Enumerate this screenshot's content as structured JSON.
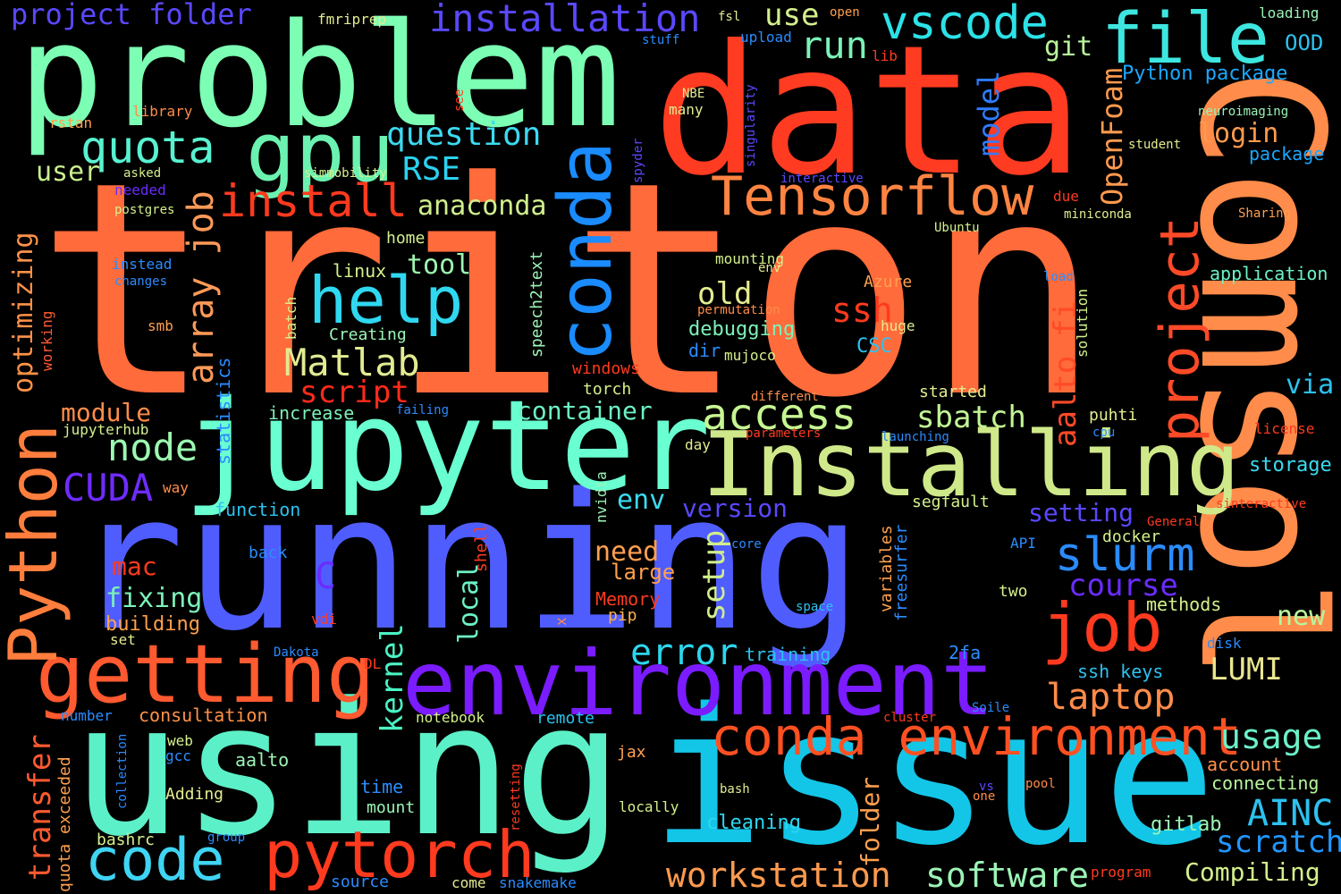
{
  "background_color": "#000000",
  "words": [
    {
      "text": "triton",
      "color": "#ff6b3a"
    },
    {
      "text": "running",
      "color": "#4f5dff"
    },
    {
      "text": "using",
      "color": "#5cf0c8"
    },
    {
      "text": "issue",
      "color": "#13c6e8"
    },
    {
      "text": "data",
      "color": "#ff3b21"
    },
    {
      "text": "problem",
      "color": "#7cffb4"
    },
    {
      "text": "Comsol",
      "color": "#ff8c4a"
    },
    {
      "text": "jupyter",
      "color": "#6affd0"
    },
    {
      "text": "Installing",
      "color": "#cfe98a"
    },
    {
      "text": "environment",
      "color": "#7a1cff"
    },
    {
      "text": "getting",
      "color": "#ff5a30"
    },
    {
      "text": "Python",
      "color": "#ff7e3d"
    },
    {
      "text": "code",
      "color": "#3fd4f4"
    },
    {
      "text": "pytorch",
      "color": "#ff3a1f"
    },
    {
      "text": "conda",
      "color": "#1a8cff"
    },
    {
      "text": "conda environment",
      "color": "#ff5022"
    },
    {
      "text": "job",
      "color": "#ff3a1f"
    },
    {
      "text": "gpu",
      "color": "#6bf2b0"
    },
    {
      "text": "file",
      "color": "#3ee6e0"
    },
    {
      "text": "help",
      "color": "#2fd8f0"
    },
    {
      "text": "quota",
      "color": "#58f2d0"
    },
    {
      "text": "install",
      "color": "#ff3a1f"
    },
    {
      "text": "Tensorflow",
      "color": "#ff8442"
    },
    {
      "text": "project",
      "color": "#ff4a28"
    },
    {
      "text": "vscode",
      "color": "#2ce2e8"
    },
    {
      "text": "installation",
      "color": "#5a48ff"
    },
    {
      "text": "project folder",
      "color": "#5a48ff"
    },
    {
      "text": "use",
      "color": "#d4f08c"
    },
    {
      "text": "run",
      "color": "#7cf2b8"
    },
    {
      "text": "access",
      "color": "#c6f592"
    },
    {
      "text": "node",
      "color": "#9cf8b0"
    },
    {
      "text": "CUDA",
      "color": "#6e2cff"
    },
    {
      "text": "array job",
      "color": "#ff9a58"
    },
    {
      "text": "Matlab",
      "color": "#e2eb92"
    },
    {
      "text": "slurm",
      "color": "#2a8cff"
    },
    {
      "text": "error",
      "color": "#2cd6ee"
    },
    {
      "text": "laptop",
      "color": "#ff8c4a"
    },
    {
      "text": "workstation",
      "color": "#ff9a4e"
    },
    {
      "text": "software",
      "color": "#9cf4b6"
    },
    {
      "text": "usage",
      "color": "#6cf0c8"
    },
    {
      "text": "scratch",
      "color": "#2296ff"
    },
    {
      "text": "AINC",
      "color": "#2cc2f0"
    },
    {
      "text": "aalto fi",
      "color": "#ff4a28"
    },
    {
      "text": "optimizing",
      "color": "#ff9248"
    },
    {
      "text": "transfer",
      "color": "#ff5a30"
    },
    {
      "text": "kernel",
      "color": "#4af2c4"
    },
    {
      "text": "setup",
      "color": "#d0ee8c"
    },
    {
      "text": "local",
      "color": "#6cf2c4"
    },
    {
      "text": "OpenFoam",
      "color": "#ff9a4e"
    },
    {
      "text": "model",
      "color": "#2e7cff"
    },
    {
      "text": "ssh",
      "color": "#ff3a1f"
    },
    {
      "text": "script",
      "color": "#ff2a1a"
    },
    {
      "text": "question",
      "color": "#3cdaf0"
    },
    {
      "text": "RSE",
      "color": "#2ad2f0"
    },
    {
      "text": "anaconda",
      "color": "#d0ee8c"
    },
    {
      "text": "tool",
      "color": "#9cf6b0"
    },
    {
      "text": "old",
      "color": "#e4ec90"
    },
    {
      "text": "container",
      "color": "#6cf2c4"
    },
    {
      "text": "sbatch",
      "color": "#c2f594"
    },
    {
      "text": "module",
      "color": "#ff8c4a"
    },
    {
      "text": "LUMI",
      "color": "#eae690"
    },
    {
      "text": "course",
      "color": "#6a2cff"
    },
    {
      "text": "setting",
      "color": "#5a48ff"
    },
    {
      "text": "new",
      "color": "#b8f69c"
    },
    {
      "text": "git",
      "color": "#b8f69c"
    },
    {
      "text": "login",
      "color": "#ff9a4e"
    },
    {
      "text": "user",
      "color": "#c8ee8e"
    },
    {
      "text": "via",
      "color": "#2cc2f0"
    },
    {
      "text": "storage",
      "color": "#3cdaf0"
    },
    {
      "text": "OOD",
      "color": "#2cc2f0"
    },
    {
      "text": "Python package",
      "color": "#1aa8ff"
    },
    {
      "text": "package",
      "color": "#1aa8ff"
    },
    {
      "text": "application",
      "color": "#6cf2c4"
    },
    {
      "text": "debugging",
      "color": "#7cf2b8"
    },
    {
      "text": "fixing",
      "color": "#7cf2b8"
    },
    {
      "text": "mac",
      "color": "#ff3a1f"
    },
    {
      "text": "building",
      "color": "#ffa04e"
    },
    {
      "text": "need",
      "color": "#ffa04e"
    },
    {
      "text": "large",
      "color": "#ffa04e"
    },
    {
      "text": "env",
      "color": "#3cdaf0"
    },
    {
      "text": "version",
      "color": "#5a48ff"
    },
    {
      "text": "Compiling",
      "color": "#d4f08c"
    },
    {
      "text": "C",
      "color": "#6a2cff"
    },
    {
      "text": "consultation",
      "color": "#ff9248"
    },
    {
      "text": "training",
      "color": "#2cc2f0"
    },
    {
      "text": "ssh keys",
      "color": "#2cc2f0"
    },
    {
      "text": "2fa",
      "color": "#2a8cff"
    },
    {
      "text": "account",
      "color": "#ff9248"
    },
    {
      "text": "connecting",
      "color": "#b8f69c"
    },
    {
      "text": "cleaning",
      "color": "#2cd6ee"
    },
    {
      "text": "gitlab",
      "color": "#9cf4b6"
    },
    {
      "text": "folder",
      "color": "#ffa04e"
    },
    {
      "text": "dir",
      "color": "#2a8cff"
    },
    {
      "text": "CSC",
      "color": "#2cc2f0"
    },
    {
      "text": "increase",
      "color": "#7cf2b8"
    },
    {
      "text": "function",
      "color": "#2cc2f0"
    },
    {
      "text": "statistics",
      "color": "#2a8cff"
    },
    {
      "text": "time",
      "color": "#2a8cff"
    },
    {
      "text": "aalto",
      "color": "#9cf4b6"
    },
    {
      "text": "mount",
      "color": "#9cf4b6"
    },
    {
      "text": "pip",
      "color": "#ffb050"
    },
    {
      "text": "methods",
      "color": "#d4f08c"
    },
    {
      "text": "two",
      "color": "#d4f08c"
    },
    {
      "text": "docker",
      "color": "#d4f08c"
    },
    {
      "text": "Memory",
      "color": "#ff3a1f"
    },
    {
      "text": "variables",
      "color": "#ffa04e"
    },
    {
      "text": "freesurfer",
      "color": "#2a8cff"
    },
    {
      "text": "puhti",
      "color": "#e4ec90"
    },
    {
      "text": "segfault",
      "color": "#d4f08c"
    },
    {
      "text": "started",
      "color": "#e4ec90"
    },
    {
      "text": "solution",
      "color": "#d4f08c"
    },
    {
      "text": "huge",
      "color": "#e4ec90"
    },
    {
      "text": "Azure",
      "color": "#ffa04e"
    },
    {
      "text": "mounting",
      "color": "#d4f08c"
    },
    {
      "text": "mujoco",
      "color": "#d4f08c"
    },
    {
      "text": "torch",
      "color": "#d4f08c"
    },
    {
      "text": "windows",
      "color": "#ff3a1f"
    },
    {
      "text": "linux",
      "color": "#d4f08c"
    },
    {
      "text": "home",
      "color": "#d4f08c"
    },
    {
      "text": "Creating",
      "color": "#9cf4b6"
    },
    {
      "text": "batch",
      "color": "#d4f08c"
    },
    {
      "text": "speech2text",
      "color": "#9cf4b6"
    },
    {
      "text": "smb",
      "color": "#ffa04e"
    },
    {
      "text": "working",
      "color": "#ff5a30"
    },
    {
      "text": "instead",
      "color": "#2a8cff"
    },
    {
      "text": "changes",
      "color": "#2a8cff"
    },
    {
      "text": "postgres",
      "color": "#d4f08c"
    },
    {
      "text": "needed",
      "color": "#6a2cff"
    },
    {
      "text": "asked",
      "color": "#d4f08c"
    },
    {
      "text": "simmobility",
      "color": "#d4f08c"
    },
    {
      "text": "rstan",
      "color": "#ffa04e"
    },
    {
      "text": "library",
      "color": "#ff8c4a"
    },
    {
      "text": "see",
      "color": "#ff3a1f"
    },
    {
      "text": "lib",
      "color": "#ff3a1f"
    },
    {
      "text": "fmriprep",
      "color": "#e4ec90"
    },
    {
      "text": "fsl",
      "color": "#e4ec90"
    },
    {
      "text": "open",
      "color": "#ffa04e"
    },
    {
      "text": "stuff",
      "color": "#2a8cff"
    },
    {
      "text": "upload",
      "color": "#2a8cff"
    },
    {
      "text": "NBE",
      "color": "#e4ec90"
    },
    {
      "text": "many",
      "color": "#e4ec90"
    },
    {
      "text": "spyder",
      "color": "#5a48ff"
    },
    {
      "text": "singularity",
      "color": "#5a48ff"
    },
    {
      "text": "interactive",
      "color": "#5a48ff"
    },
    {
      "text": "due",
      "color": "#ff3a1f"
    },
    {
      "text": "miniconda",
      "color": "#e4ec90"
    },
    {
      "text": "Ubuntu",
      "color": "#d4f08c"
    },
    {
      "text": "env",
      "color": "#e4ec90"
    },
    {
      "text": "permutation",
      "color": "#ff8c4a"
    },
    {
      "text": "load",
      "color": "#2a8cff"
    },
    {
      "text": "student",
      "color": "#e4ec90"
    },
    {
      "text": "neuroimaging",
      "color": "#9cf4b6"
    },
    {
      "text": "loading",
      "color": "#9cf4b6"
    },
    {
      "text": "Sharing",
      "color": "#ffa04e"
    },
    {
      "text": "different",
      "color": "#ff8c4a"
    },
    {
      "text": "parameters",
      "color": "#ff3a1f"
    },
    {
      "text": "launching",
      "color": "#2a8cff"
    },
    {
      "text": "cpu",
      "color": "#2a8cff"
    },
    {
      "text": "license",
      "color": "#ff3a1f"
    },
    {
      "text": "sinteractive",
      "color": "#ff3a1f"
    },
    {
      "text": "General",
      "color": "#ff3a1f"
    },
    {
      "text": "API",
      "color": "#2a8cff"
    },
    {
      "text": "core",
      "color": "#2a8cff"
    },
    {
      "text": "space",
      "color": "#2cc2f0"
    },
    {
      "text": "x",
      "color": "#ff8c4a"
    },
    {
      "text": "disk",
      "color": "#2a8cff"
    },
    {
      "text": "cluster",
      "color": "#ff3a1f"
    },
    {
      "text": "Soile",
      "color": "#2a8cff"
    },
    {
      "text": "remote",
      "color": "#2cc2f0"
    },
    {
      "text": "notebook",
      "color": "#d4f08c"
    },
    {
      "text": "jax",
      "color": "#ffa04e"
    },
    {
      "text": "vs",
      "color": "#5a48ff"
    },
    {
      "text": "one",
      "color": "#ff8c4a"
    },
    {
      "text": "pool",
      "color": "#ff8c4a"
    },
    {
      "text": "bash",
      "color": "#e4ec90"
    },
    {
      "text": "locally",
      "color": "#d4f08c"
    },
    {
      "text": "resetting",
      "color": "#ff3a1f"
    },
    {
      "text": "program",
      "color": "#ff3a1f"
    },
    {
      "text": "come",
      "color": "#e4ec90"
    },
    {
      "text": "snakemake",
      "color": "#2a8cff"
    },
    {
      "text": "source",
      "color": "#2a8cff"
    },
    {
      "text": "Adding",
      "color": "#e4ec90"
    },
    {
      "text": "group",
      "color": "#2a8cff"
    },
    {
      "text": "bashrc",
      "color": "#d4f08c"
    },
    {
      "text": "quota exceeded",
      "color": "#ffa04e"
    },
    {
      "text": "collection",
      "color": "#2a8cff"
    },
    {
      "text": "gcc",
      "color": "#2a8cff"
    },
    {
      "text": "web",
      "color": "#d4f08c"
    },
    {
      "text": "number",
      "color": "#2a8cff"
    },
    {
      "text": "DL",
      "color": "#ff3a1f"
    },
    {
      "text": "Dakota",
      "color": "#2a8cff"
    },
    {
      "text": "vdi",
      "color": "#ff3a1f"
    },
    {
      "text": "set",
      "color": "#e4ec90"
    },
    {
      "text": "back",
      "color": "#2a8cff"
    },
    {
      "text": "shell",
      "color": "#ff3a1f"
    },
    {
      "text": "nvidia",
      "color": "#9cf4b6"
    },
    {
      "text": "way",
      "color": "#ff8c4a"
    },
    {
      "text": "day",
      "color": "#e4ec90"
    },
    {
      "text": "failing",
      "color": "#2a8cff"
    },
    {
      "text": "jupyterhub",
      "color": "#d4f08c"
    }
  ]
}
